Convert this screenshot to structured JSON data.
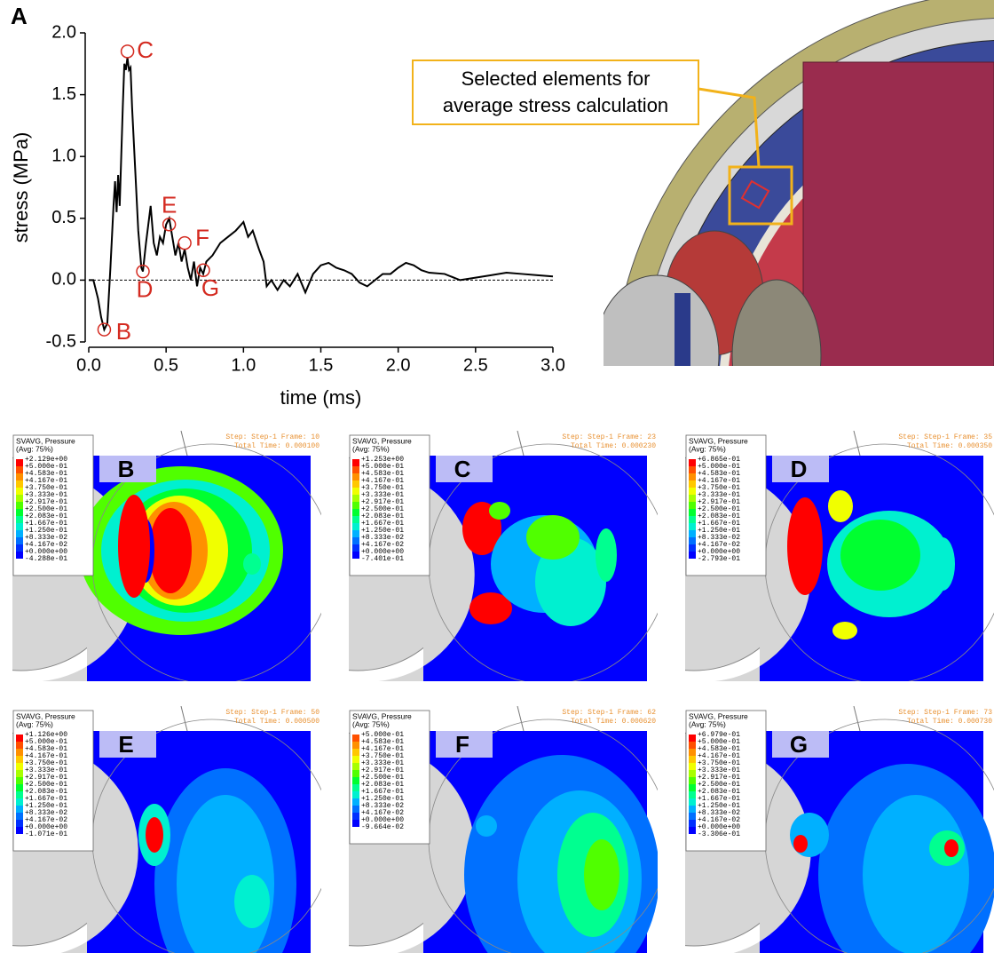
{
  "figure_label": "A",
  "chart_data": {
    "type": "line",
    "xlabel": "time (ms)",
    "ylabel": "stress (MPa)",
    "color": "#000000",
    "x": [
      0,
      0.03,
      0.06,
      0.08,
      0.1,
      0.12,
      0.14,
      0.16,
      0.17,
      0.18,
      0.19,
      0.2,
      0.21,
      0.22,
      0.23,
      0.24,
      0.25,
      0.26,
      0.27,
      0.28,
      0.3,
      0.32,
      0.34,
      0.35,
      0.37,
      0.4,
      0.42,
      0.44,
      0.46,
      0.48,
      0.5,
      0.52,
      0.54,
      0.56,
      0.58,
      0.6,
      0.62,
      0.64,
      0.66,
      0.68,
      0.7,
      0.72,
      0.74,
      0.76,
      0.8,
      0.85,
      0.9,
      0.95,
      1.0,
      1.03,
      1.06,
      1.1,
      1.13,
      1.15,
      1.18,
      1.22,
      1.26,
      1.3,
      1.35,
      1.4,
      1.45,
      1.5,
      1.55,
      1.6,
      1.65,
      1.7,
      1.75,
      1.8,
      1.85,
      1.9,
      1.95,
      2.0,
      2.05,
      2.1,
      2.15,
      2.2,
      2.3,
      2.4,
      2.5,
      2.6,
      2.7,
      2.8,
      2.9,
      3.0
    ],
    "values": [
      0,
      0,
      -0.15,
      -0.3,
      -0.4,
      -0.35,
      0.1,
      0.6,
      0.8,
      0.55,
      0.85,
      0.6,
      1.0,
      1.4,
      1.75,
      1.7,
      1.8,
      1.7,
      1.72,
      1.4,
      0.9,
      0.4,
      0.1,
      0.07,
      0.3,
      0.6,
      0.3,
      0.2,
      0.35,
      0.3,
      0.45,
      0.5,
      0.35,
      0.2,
      0.3,
      0.15,
      0.25,
      0.1,
      0,
      0.15,
      -0.05,
      0.1,
      0.05,
      0.15,
      0.2,
      0.3,
      0.35,
      0.4,
      0.47,
      0.35,
      0.4,
      0.25,
      0.15,
      -0.05,
      0,
      -0.08,
      0,
      -0.05,
      0.05,
      -0.1,
      0.05,
      0.12,
      0.14,
      0.1,
      0.08,
      0.05,
      -0.02,
      -0.05,
      0,
      0.05,
      0.05,
      0.1,
      0.14,
      0.12,
      0.08,
      0.06,
      0.05,
      0,
      0.02,
      0.04,
      0.06,
      0.05,
      0.04,
      0.03
    ],
    "xlim": [
      0,
      3
    ],
    "ylim": [
      -0.5,
      2
    ],
    "xticks": [
      {
        "value": 0,
        "label": "0.0"
      },
      0.5,
      {
        "value": 1,
        "label": "1.0"
      },
      1.5,
      {
        "value": 2,
        "label": "2.0"
      },
      2.5,
      {
        "value": 3,
        "label": "3.0"
      }
    ],
    "yticks": [
      -0.5,
      {
        "value": 0,
        "label": "0.0"
      },
      0.5,
      {
        "value": 1,
        "label": "1.0"
      },
      1.5,
      {
        "value": 2,
        "label": "2.0"
      }
    ],
    "reference_line": 0,
    "annotations": [
      {
        "label": "B",
        "x": 0.1,
        "y": -0.4
      },
      {
        "label": "C",
        "x": 0.25,
        "y": 1.85
      },
      {
        "label": "D",
        "x": 0.35,
        "y": 0.07
      },
      {
        "label": "E",
        "x": 0.52,
        "y": 0.45
      },
      {
        "label": "F",
        "x": 0.62,
        "y": 0.3
      },
      {
        "label": "G",
        "x": 0.74,
        "y": 0.08
      }
    ],
    "annotation_color": "#d42a20"
  },
  "mesh_callout": [
    "Selected elements for",
    "average stress calculation"
  ],
  "legend_title": "SVAVG, Pressure",
  "legend_subtitle": "(Avg: 75%)",
  "panels": [
    {
      "letter": "B",
      "step": "Step: Step-1   Frame: 10",
      "time": "Total Time: 0.000100",
      "legend": [
        "+2.129e+00",
        "+5.000e-01",
        "+4.583e-01",
        "+4.167e-01",
        "+3.750e-01",
        "+3.333e-01",
        "+2.917e-01",
        "+2.500e-01",
        "+2.083e-01",
        "+1.667e-01",
        "+1.250e-01",
        "+8.333e-02",
        "+4.167e-02",
        "+0.000e+00",
        "-4.288e-01"
      ]
    },
    {
      "letter": "C",
      "step": "Step: Step-1   Frame: 23",
      "time": "Total Time: 0.000230",
      "legend": [
        "+1.253e+00",
        "+5.000e-01",
        "+4.583e-01",
        "+4.167e-01",
        "+3.750e-01",
        "+3.333e-01",
        "+2.917e-01",
        "+2.500e-01",
        "+2.083e-01",
        "+1.667e-01",
        "+1.250e-01",
        "+8.333e-02",
        "+4.167e-02",
        "+0.000e+00",
        "-7.401e-01"
      ]
    },
    {
      "letter": "D",
      "step": "Step: Step-1   Frame: 35",
      "time": "Total Time: 0.000350",
      "legend": [
        "+6.865e-01",
        "+5.000e-01",
        "+4.583e-01",
        "+4.167e-01",
        "+3.750e-01",
        "+3.333e-01",
        "+2.917e-01",
        "+2.500e-01",
        "+2.083e-01",
        "+1.667e-01",
        "+1.250e-01",
        "+8.333e-02",
        "+4.167e-02",
        "+0.000e+00",
        "-2.793e-01"
      ]
    },
    {
      "letter": "E",
      "step": "Step: Step-1   Frame: 50",
      "time": "Total Time: 0.000500",
      "legend": [
        "+1.126e+00",
        "+5.000e-01",
        "+4.583e-01",
        "+4.167e-01",
        "+3.750e-01",
        "+3.333e-01",
        "+2.917e-01",
        "+2.500e-01",
        "+2.083e-01",
        "+1.667e-01",
        "+1.250e-01",
        "+8.333e-02",
        "+4.167e-02",
        "+0.000e+00",
        "-1.071e-01"
      ]
    },
    {
      "letter": "F",
      "step": "Step: Step-1   Frame: 62",
      "time": "Total Time: 0.000620",
      "legend": [
        "+5.000e-01",
        "+4.583e-01",
        "+4.167e-01",
        "+3.750e-01",
        "+3.333e-01",
        "+2.917e-01",
        "+2.500e-01",
        "+2.083e-01",
        "+1.667e-01",
        "+1.250e-01",
        "+8.333e-02",
        "+4.167e-02",
        "+0.000e+00",
        "-9.664e-02"
      ]
    },
    {
      "letter": "G",
      "step": "Step: Step-1   Frame: 73",
      "time": "Total Time: 0.000730",
      "legend": [
        "+6.979e-01",
        "+5.000e-01",
        "+4.583e-01",
        "+4.167e-01",
        "+3.750e-01",
        "+3.333e-01",
        "+2.917e-01",
        "+2.500e-01",
        "+2.083e-01",
        "+1.667e-01",
        "+1.250e-01",
        "+8.333e-02",
        "+4.167e-02",
        "+0.000e+00",
        "-3.306e-01"
      ]
    }
  ]
}
